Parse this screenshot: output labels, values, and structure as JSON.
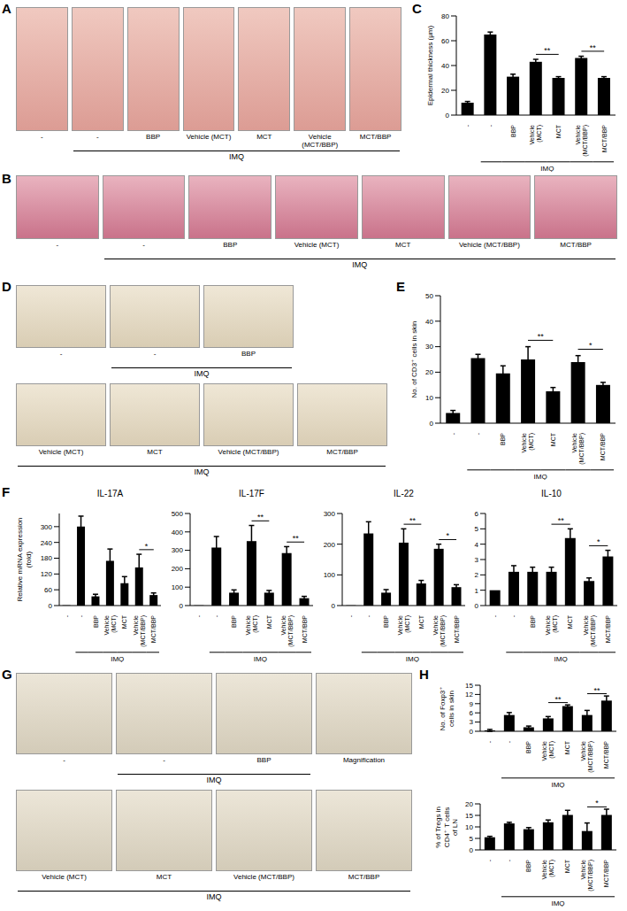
{
  "image_panels": [
    {
      "panel": "A",
      "rows": [
        {
          "ungrouped": [
            "-"
          ],
          "group": {
            "label": "IMQ",
            "tiles": [
              "-",
              "BBP",
              "Vehicle (MCT)",
              "MCT",
              "Vehicle (MCT/BBP)",
              "MCT/BBP"
            ]
          }
        }
      ]
    },
    {
      "panel": "B",
      "rows": [
        {
          "ungrouped": [
            "-"
          ],
          "group": {
            "label": "IMQ",
            "tiles": [
              "-",
              "BBP",
              "Vehicle (MCT)",
              "MCT",
              "Vehicle (MCT/BBP)",
              "MCT/BBP"
            ]
          }
        }
      ]
    },
    {
      "panel": "D",
      "rows": [
        {
          "ungrouped": [
            "-"
          ],
          "group": {
            "label": "IMQ",
            "tiles": [
              "-",
              "BBP"
            ]
          }
        },
        {
          "ungrouped": [],
          "group": {
            "label": "IMQ",
            "tiles": [
              "Vehicle (MCT)",
              "MCT",
              "Vehicle (MCT/BBP)",
              "MCT/BBP"
            ]
          }
        }
      ]
    },
    {
      "panel": "G",
      "rows": [
        {
          "ungrouped": [
            "-"
          ],
          "group": {
            "label": "IMQ",
            "tiles": [
              "-",
              "BBP"
            ]
          },
          "after": [
            "Magnification"
          ]
        },
        {
          "ungrouped": [],
          "group": {
            "label": "IMQ",
            "tiles": [
              "Vehicle (MCT)",
              "MCT",
              "Vehicle (MCT/BBP)",
              "MCT/BBP"
            ]
          }
        }
      ]
    }
  ],
  "chart_data": [
    {
      "panel": "C",
      "type": "bar",
      "y_label": "Epidermal thickness (μm)",
      "categories": [
        "-",
        "-",
        "BBP",
        "Vehicle (MCT)",
        "MCT",
        "Vehicle (MCT/BBP)",
        "MCT/BBP"
      ],
      "values": [
        10,
        65,
        31,
        43,
        30,
        46,
        30
      ],
      "errors": [
        1,
        2,
        2,
        2,
        1,
        1.5,
        1
      ],
      "color": "#000000",
      "ylim": [
        0,
        80
      ],
      "yticks": [
        0,
        20,
        40,
        60,
        80
      ],
      "group": {
        "label": "IMQ",
        "from": 1,
        "to": 6
      },
      "significance": [
        {
          "from": 3,
          "to": 4,
          "label": "**"
        },
        {
          "from": 5,
          "to": 6,
          "label": "**"
        }
      ]
    },
    {
      "panel": "E",
      "type": "bar",
      "y_label": "No. of CD3⁺ cells in skin",
      "categories": [
        "-",
        "-",
        "BBP",
        "Vehicle (MCT)",
        "MCT",
        "Vehicle (MCT/BBP)",
        "MCT/BBP"
      ],
      "values": [
        4,
        25.5,
        19.5,
        25,
        12.5,
        24,
        15
      ],
      "errors": [
        1,
        1.5,
        3,
        5,
        1.5,
        2.5,
        1
      ],
      "color": "#000000",
      "ylim": [
        0,
        50
      ],
      "yticks": [
        0,
        10,
        20,
        30,
        40,
        50
      ],
      "group": {
        "label": "IMQ",
        "from": 1,
        "to": 6
      },
      "significance": [
        {
          "from": 3,
          "to": 4,
          "label": "**"
        },
        {
          "from": 5,
          "to": 6,
          "label": "*"
        }
      ]
    },
    {
      "panel": "F",
      "type": "bar",
      "title": "IL-17A",
      "y_label": "Relative mRNA expression (fold)",
      "categories": [
        "-",
        "-",
        "BBP",
        "Vehicle (MCT)",
        "MCT",
        "Vehicle (MCT/BBP)",
        "MCT/BBP"
      ],
      "values": [
        1,
        300,
        35,
        170,
        85,
        145,
        40
      ],
      "errors": [
        0,
        40,
        8,
        45,
        25,
        50,
        8
      ],
      "color": "#000000",
      "ylim": [
        0,
        350
      ],
      "yticks": [
        0,
        60,
        120,
        180,
        240,
        300
      ],
      "group": {
        "label": "IMQ",
        "from": 1,
        "to": 6
      },
      "significance": [
        {
          "from": 5,
          "to": 6,
          "label": "*"
        }
      ]
    },
    {
      "panel": "F",
      "type": "bar",
      "title": "IL-17F",
      "categories": [
        "-",
        "-",
        "BBP",
        "Vehicle (MCT)",
        "MCT",
        "Vehicle (MCT/BBP)",
        "MCT/BBP"
      ],
      "values": [
        1,
        315,
        70,
        350,
        70,
        285,
        40
      ],
      "errors": [
        0,
        60,
        15,
        85,
        12,
        35,
        10
      ],
      "color": "#000000",
      "ylim": [
        0,
        500
      ],
      "yticks": [
        0,
        100,
        200,
        300,
        400,
        500
      ],
      "group": {
        "label": "IMQ",
        "from": 1,
        "to": 6
      },
      "significance": [
        {
          "from": 3,
          "to": 4,
          "label": "**"
        },
        {
          "from": 5,
          "to": 6,
          "label": "**"
        }
      ]
    },
    {
      "panel": "F",
      "type": "bar",
      "title": "IL-22",
      "categories": [
        "-",
        "-",
        "BBP",
        "Vehicle (MCT)",
        "MCT",
        "Vehicle (MCT/BBP)",
        "MCT/BBP"
      ],
      "values": [
        1,
        235,
        42,
        205,
        72,
        185,
        60
      ],
      "errors": [
        0,
        38,
        10,
        45,
        10,
        15,
        8
      ],
      "color": "#000000",
      "ylim": [
        0,
        300
      ],
      "yticks": [
        0,
        100,
        200,
        300
      ],
      "group": {
        "label": "IMQ",
        "from": 1,
        "to": 6
      },
      "significance": [
        {
          "from": 3,
          "to": 4,
          "label": "**"
        },
        {
          "from": 5,
          "to": 6,
          "label": "*"
        }
      ]
    },
    {
      "panel": "F",
      "type": "bar",
      "title": "IL-10",
      "categories": [
        "-",
        "-",
        "BBP",
        "Vehicle (MCT)",
        "MCT",
        "Vehicle (MCT/BBP)",
        "MCT/BBP"
      ],
      "values": [
        1,
        2.2,
        2.2,
        2.2,
        4.4,
        1.6,
        3.2
      ],
      "errors": [
        0,
        0.4,
        0.3,
        0.3,
        0.6,
        0.2,
        0.4
      ],
      "color": "#000000",
      "ylim": [
        0,
        6
      ],
      "yticks": [
        0,
        1,
        2,
        3,
        4,
        5,
        6
      ],
      "group": {
        "label": "IMQ",
        "from": 1,
        "to": 6
      },
      "significance": [
        {
          "from": 3,
          "to": 4,
          "label": "**"
        },
        {
          "from": 5,
          "to": 6,
          "label": "*"
        }
      ]
    },
    {
      "panel": "H",
      "type": "bar",
      "y_label": "No. of Foxp3⁺ cells in skin",
      "categories": [
        "-",
        "-",
        "BBP",
        "Vehicle (MCT)",
        "MCT",
        "Vehicle (MCT/BBP)",
        "MCT/BBP"
      ],
      "values": [
        0.3,
        5.3,
        1.3,
        4.2,
        8.2,
        5.3,
        10
      ],
      "errors": [
        0.3,
        0.8,
        0.4,
        0.6,
        0.4,
        1.5,
        1.5
      ],
      "color": "#000000",
      "ylim": [
        0,
        15
      ],
      "yticks": [
        0,
        3,
        6,
        9,
        12,
        15
      ],
      "group": {
        "label": "IMQ",
        "from": 1,
        "to": 6
      },
      "significance": [
        {
          "from": 3,
          "to": 4,
          "label": "**"
        },
        {
          "from": 5,
          "to": 6,
          "label": "**"
        }
      ]
    },
    {
      "panel": "H",
      "type": "bar",
      "y_label": "% of Tregs in CD4⁺ T cells of LN",
      "categories": [
        "-",
        "-",
        "BBP",
        "Vehicle (MCT)",
        "MCT",
        "Vehicle (MCT/BBP)",
        "MCT/BBP"
      ],
      "values": [
        5.5,
        11.5,
        9,
        12,
        15.2,
        8.2,
        15.2
      ],
      "errors": [
        0.4,
        0.5,
        0.7,
        1,
        2,
        3.5,
        2.5
      ],
      "color": "#000000",
      "ylim": [
        0,
        20
      ],
      "yticks": [
        0,
        5,
        10,
        15,
        20
      ],
      "group": {
        "label": "IMQ",
        "from": 1,
        "to": 6
      },
      "significance": [
        {
          "from": 5,
          "to": 6,
          "label": "*"
        }
      ]
    }
  ]
}
